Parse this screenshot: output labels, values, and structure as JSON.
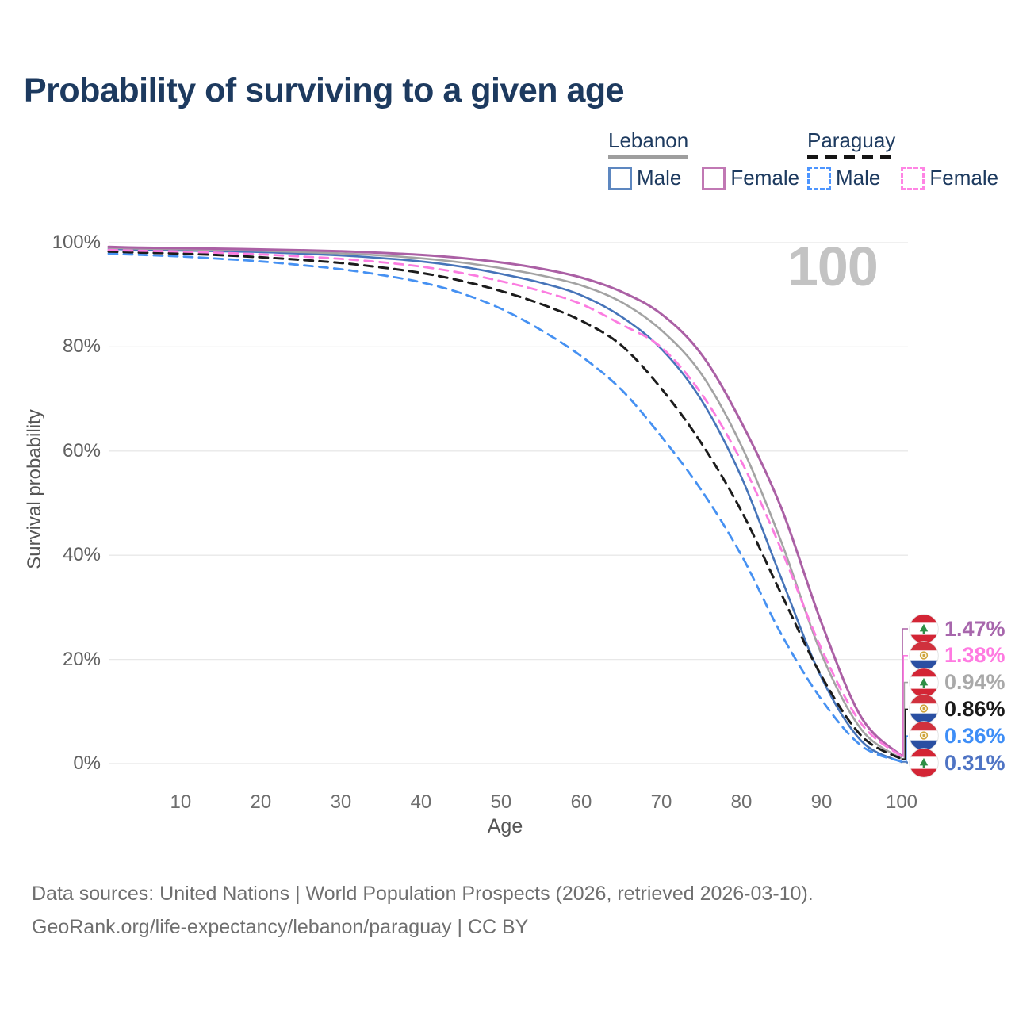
{
  "title": "Probability of surviving to a given age",
  "watermark": "100",
  "legend": {
    "groups": [
      {
        "label": "Lebanon",
        "line_style": "solid",
        "underline_color": "#9e9e9e",
        "items": [
          {
            "label": "Male",
            "swatch_color": "#5d87c0",
            "dashed": false
          },
          {
            "label": "Female",
            "swatch_color": "#c178b4",
            "dashed": false
          }
        ]
      },
      {
        "label": "Paraguay",
        "line_style": "dashed",
        "underline_color": "#151515",
        "items": [
          {
            "label": "Male",
            "swatch_color": "#4d95ff",
            "dashed": true
          },
          {
            "label": "Female",
            "swatch_color": "#ff84e4",
            "dashed": true
          }
        ]
      }
    ]
  },
  "chart_data": {
    "type": "line",
    "title": "Probability of surviving to a given age",
    "xlabel": "Age",
    "ylabel": "Survival probability",
    "xlim": [
      1,
      100
    ],
    "ylim": [
      0,
      100
    ],
    "grid": "horizontal",
    "legend_position": "top-right",
    "x_ticks": [
      10,
      20,
      30,
      40,
      50,
      60,
      70,
      80,
      90,
      100
    ],
    "y_tick_values": [
      0,
      20,
      40,
      60,
      80,
      100
    ],
    "y_tick_labels": [
      "0%",
      "20%",
      "40%",
      "60%",
      "80%",
      "100%"
    ],
    "x": [
      1,
      5,
      10,
      15,
      20,
      25,
      30,
      35,
      40,
      45,
      50,
      55,
      60,
      65,
      70,
      75,
      80,
      85,
      90,
      95,
      100
    ],
    "series": [
      {
        "name": "Lebanon male",
        "country": "Lebanon",
        "sex": "male",
        "style": "solid",
        "color": "#4674b9",
        "width": 2.6,
        "values": [
          98.8,
          98.65,
          98.5,
          98.35,
          98.2,
          97.9,
          97.55,
          97.05,
          96.4,
          95.4,
          94.0,
          92.3,
          89.9,
          85.8,
          79.6,
          69.8,
          55.0,
          35.5,
          16.5,
          4.3,
          0.31
        ]
      },
      {
        "name": "Lebanon both sexes",
        "country": "Lebanon",
        "sex": "both",
        "style": "solid",
        "color": "#a3a3a3",
        "width": 2.6,
        "values": [
          99.0,
          98.85,
          98.75,
          98.6,
          98.45,
          98.2,
          97.95,
          97.55,
          97.0,
          96.2,
          95.1,
          93.7,
          91.8,
          88.6,
          83.2,
          74.8,
          61.0,
          42.5,
          21.0,
          6.5,
          0.94
        ]
      },
      {
        "name": "Lebanon female",
        "country": "Lebanon",
        "sex": "female",
        "style": "solid",
        "color": "#ab60a5",
        "width": 3,
        "values": [
          99.2,
          99.05,
          98.95,
          98.85,
          98.7,
          98.55,
          98.35,
          98.05,
          97.65,
          97.05,
          96.2,
          95.0,
          93.3,
          90.6,
          86.3,
          78.6,
          65.5,
          49.0,
          27.0,
          8.8,
          1.47
        ]
      },
      {
        "name": "Paraguay male",
        "country": "Paraguay",
        "sex": "male",
        "style": "dashed",
        "color": "#4691f2",
        "width": 2.8,
        "values": [
          97.9,
          97.65,
          97.35,
          96.9,
          96.4,
          95.7,
          94.9,
          93.8,
          92.4,
          90.3,
          87.3,
          83.2,
          78.2,
          71.8,
          62.8,
          52.5,
          40.0,
          24.8,
          12.3,
          3.4,
          0.36
        ]
      },
      {
        "name": "Paraguay both sexes",
        "country": "Paraguay",
        "sex": "both",
        "style": "dashed",
        "color": "#1c1c1c",
        "width": 3,
        "values": [
          98.3,
          98.1,
          97.9,
          97.6,
          97.2,
          96.7,
          96.1,
          95.25,
          94.2,
          92.7,
          90.7,
          88.2,
          85.0,
          80.3,
          72.0,
          61.5,
          48.5,
          32.5,
          16.8,
          5.3,
          0.86
        ]
      },
      {
        "name": "Paraguay female",
        "country": "Paraguay",
        "sex": "female",
        "style": "dashed",
        "color": "#fb7ce0",
        "width": 2.8,
        "values": [
          98.6,
          98.45,
          98.3,
          98.05,
          97.75,
          97.35,
          96.9,
          96.25,
          95.4,
          94.2,
          92.6,
          90.7,
          88.2,
          84.3,
          79.9,
          71.0,
          58.0,
          41.0,
          22.0,
          7.6,
          1.38
        ]
      }
    ]
  },
  "end_labels": [
    {
      "label": "1.47%",
      "value": 1.47,
      "series_index": 2,
      "flag": "lebanon",
      "color": "#a766ac"
    },
    {
      "label": "1.38%",
      "value": 1.38,
      "series_index": 5,
      "flag": "paraguay",
      "color": "#ff7ae1"
    },
    {
      "label": "0.94%",
      "value": 0.94,
      "series_index": 1,
      "flag": "lebanon",
      "color": "#a9a9a9"
    },
    {
      "label": "0.86%",
      "value": 0.86,
      "series_index": 4,
      "flag": "paraguay",
      "color": "#1a1a1a"
    },
    {
      "label": "0.36%",
      "value": 0.36,
      "series_index": 3,
      "flag": "paraguay",
      "color": "#3e8ef7"
    },
    {
      "label": "0.31%",
      "value": 0.31,
      "series_index": 0,
      "flag": "lebanon",
      "color": "#4f74c4"
    }
  ],
  "footer": {
    "line1": "Data sources: United Nations | World Population Prospects (2026, retrieved 2026-03-10).",
    "line2": "GeoRank.org/life-expectancy/lebanon/paraguay | CC BY"
  }
}
